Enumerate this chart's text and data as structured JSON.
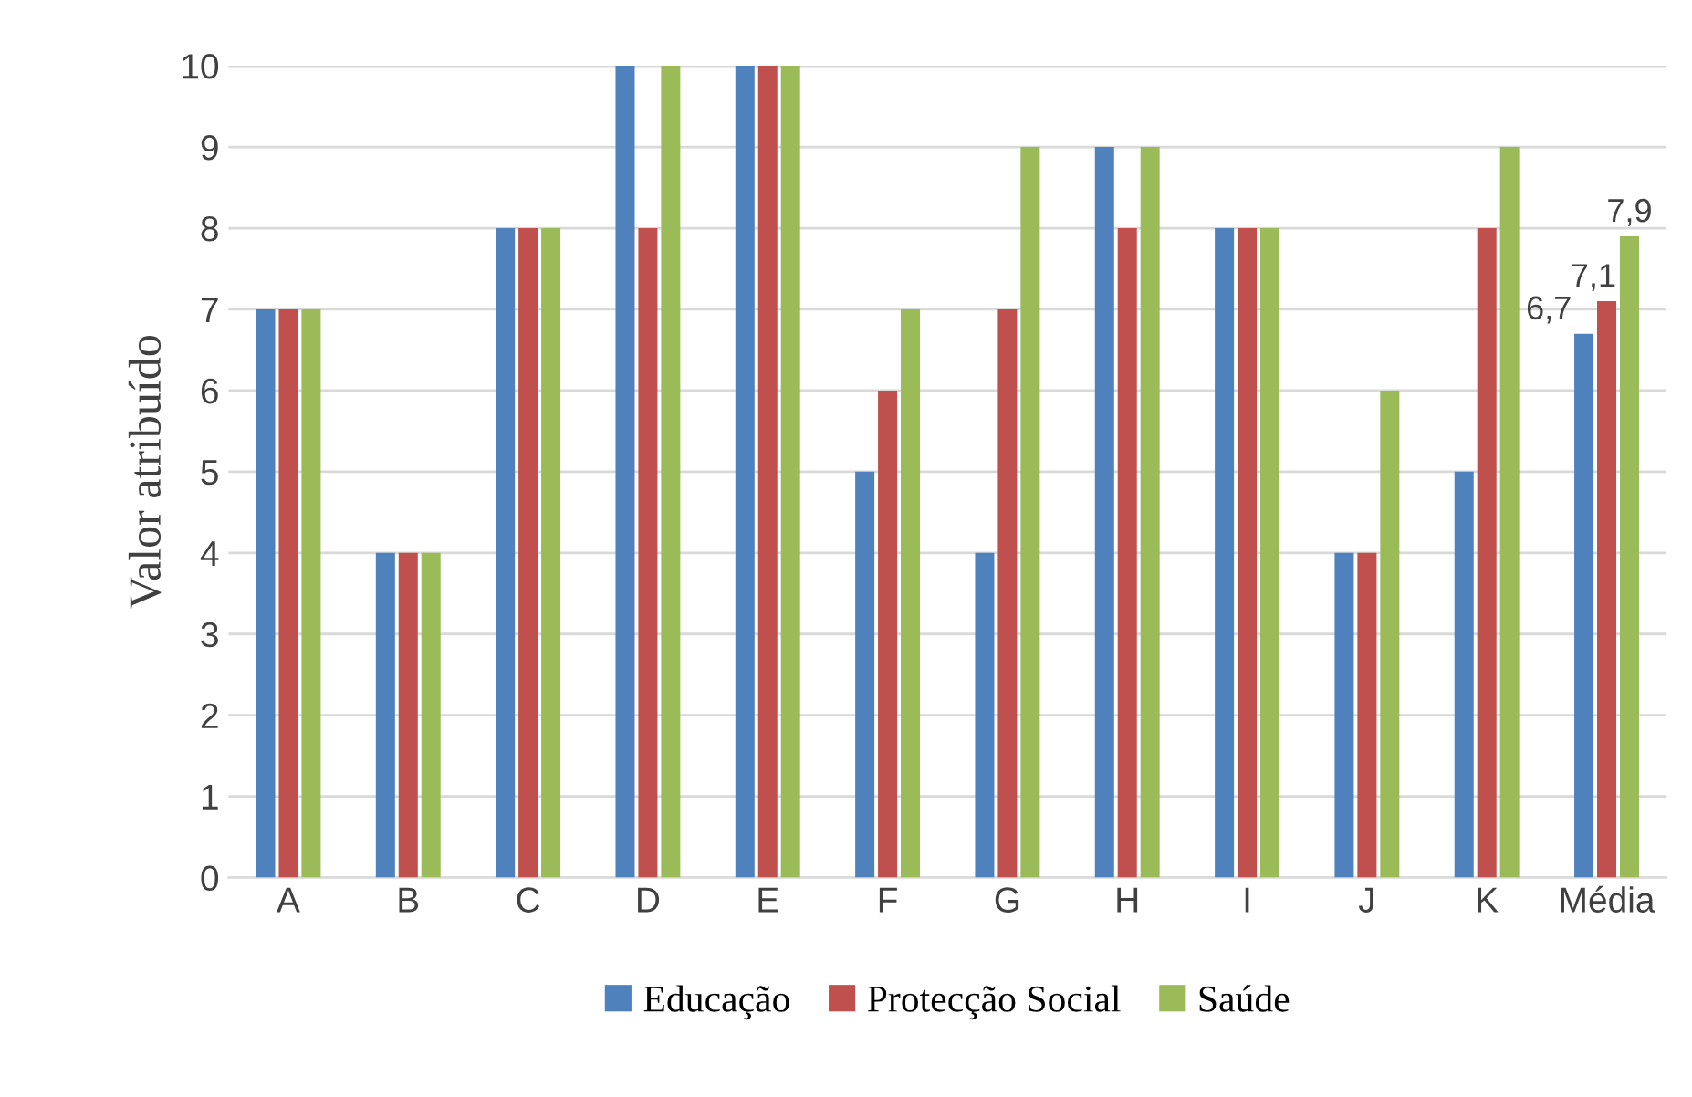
{
  "chart_data": {
    "type": "bar",
    "ylabel": "Valor atribuído",
    "categories": [
      "A",
      "B",
      "C",
      "D",
      "E",
      "F",
      "G",
      "H",
      "I",
      "J",
      "K",
      "Média"
    ],
    "series": [
      {
        "name": "Educação",
        "color": "#4f81bd",
        "values": [
          7,
          4,
          8,
          10,
          10,
          5,
          4,
          9,
          8,
          4,
          5,
          6.7
        ],
        "value_labels": [
          null,
          null,
          null,
          null,
          null,
          null,
          null,
          null,
          null,
          null,
          null,
          "6,7"
        ]
      },
      {
        "name": "Protecção Social",
        "color": "#c0504d",
        "values": [
          7,
          4,
          8,
          8,
          10,
          6,
          7,
          8,
          8,
          4,
          8,
          7.1
        ],
        "value_labels": [
          null,
          null,
          null,
          null,
          null,
          null,
          null,
          null,
          null,
          null,
          null,
          "7,1"
        ]
      },
      {
        "name": "Saúde",
        "color": "#9bbb59",
        "values": [
          7,
          4,
          8,
          10,
          10,
          7,
          9,
          9,
          8,
          6,
          9,
          7.9
        ],
        "value_labels": [
          null,
          null,
          null,
          null,
          null,
          null,
          null,
          null,
          null,
          null,
          null,
          "7,9"
        ]
      }
    ],
    "ylim": [
      0,
      10
    ],
    "yticks": [
      0,
      1,
      2,
      3,
      4,
      5,
      6,
      7,
      8,
      9,
      10
    ],
    "grid": "y",
    "legend": "bottom"
  }
}
